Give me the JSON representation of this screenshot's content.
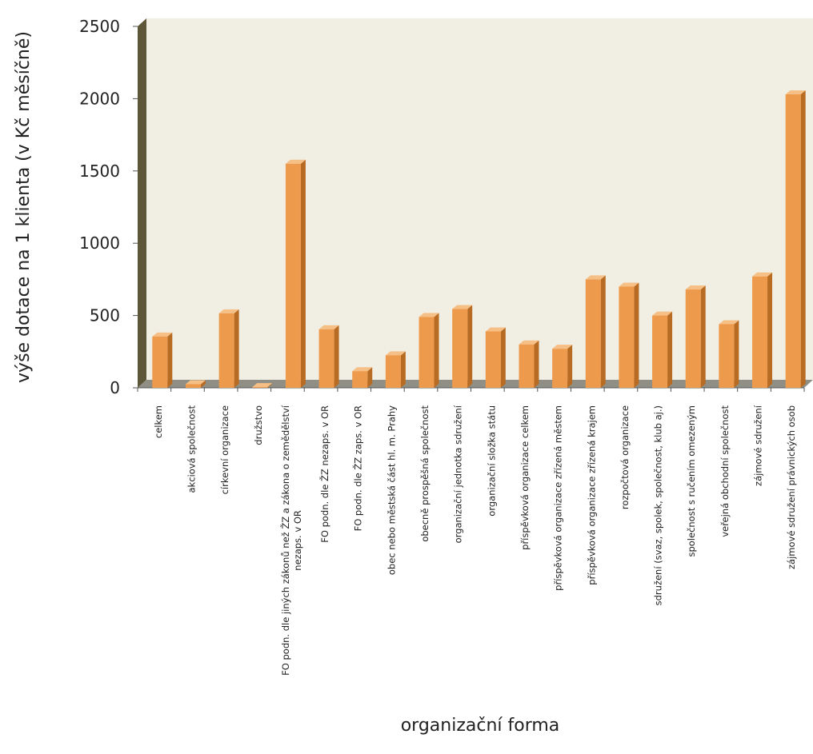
{
  "chart_data": {
    "type": "bar",
    "xlabel": "organizační forma",
    "ylabel": "výše dotace na 1 klienta (v Kč měsíčně)",
    "ylim": [
      0,
      2500
    ],
    "yticks": [
      0,
      500,
      1000,
      1500,
      2000,
      2500
    ],
    "grid": false,
    "style": "3d-bars",
    "colors": {
      "bar_front": "#ee9a4c",
      "bar_side": "#b86b22",
      "bar_top": "#f6bf86",
      "back_wall": "#f1efe4",
      "left_wall": "#5e5638",
      "floor": "#8f8f85"
    },
    "categories": [
      "celkem",
      "akciová společnost",
      "církevní organizace",
      "družstvo",
      [
        "FO podn. dle jiných zákonů než ŽZ a zákona o zemědělství",
        "nezaps. v OR"
      ],
      "FO podn. dle ŽZ nezaps. v OR",
      "FO podn. dle ŽZ zaps. v OR",
      "obec nebo městská část hl. m. Prahy",
      "obecně prospěšná společnost",
      "organizační jednotka sdružení",
      "organizační složka státu",
      "příspěvková organizace celkem",
      "příspěvková organizace zřízená městem",
      "příspěvková organizace zřízená krajem",
      "rozpočtová organizace",
      "sdružení (svaz, spolek, společnost, klub aj.)",
      "společnost s ručením omezeným",
      "veřejná obchodní společnost",
      "zájmové sdružení",
      "zájmové sdružení právnických osob"
    ],
    "values": [
      355,
      25,
      515,
      5,
      1550,
      405,
      115,
      225,
      490,
      545,
      390,
      300,
      270,
      750,
      700,
      500,
      680,
      440,
      770,
      2030
    ]
  }
}
